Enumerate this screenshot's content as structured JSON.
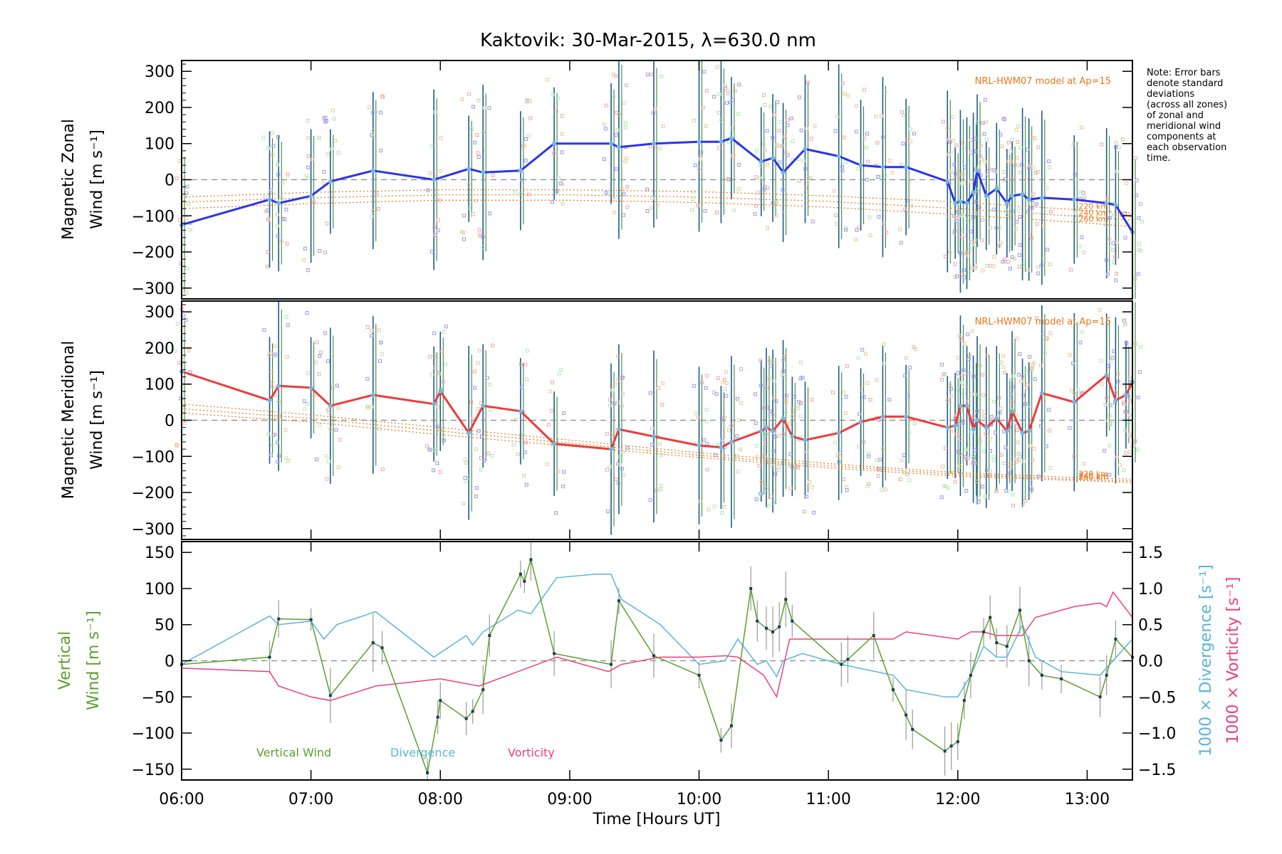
{
  "title": "Kaktovik: 30-Mar-2015, λ=630.0 nm",
  "note": [
    "Note: Error bars",
    "denote standard",
    "deviations",
    "(across all zones)",
    "of zonal and",
    "meridional wind",
    "components at",
    "each observation",
    "time."
  ],
  "colors": {
    "zonal": "#2b35e8",
    "meridional": "#f03a3a",
    "vertical": "#5aa02c",
    "divergence": "#5ab4dc",
    "vorticity": "#ee3f7c",
    "model": "#e8781e",
    "dashed": "#888888"
  },
  "chart_data": [
    {
      "type": "line",
      "panel": "zonal",
      "ylabel_lines": [
        "Magnetic Zonal",
        "Wind [m s⁻¹]"
      ],
      "ylim": [
        -330,
        330
      ],
      "yticks": [
        -300,
        -200,
        -100,
        0,
        100,
        200,
        300
      ],
      "xlim": [
        6.0,
        13.35
      ],
      "model_label": "NRL-HWM07 model at Ap=15",
      "model_altitudes": [
        "220 km",
        "240 km",
        "260 km"
      ],
      "model_curves": [
        {
          "name": "220 km",
          "x": [
            6.0,
            7.0,
            8.0,
            9.0,
            10.0,
            11.0,
            12.0,
            13.0,
            13.35
          ],
          "y": [
            -48,
            -35,
            -28,
            -28,
            -33,
            -45,
            -62,
            -85,
            -92
          ]
        },
        {
          "name": "240 km",
          "x": [
            6.0,
            7.0,
            8.0,
            9.0,
            10.0,
            11.0,
            12.0,
            13.0,
            13.35
          ],
          "y": [
            -62,
            -50,
            -42,
            -42,
            -48,
            -60,
            -80,
            -103,
            -112
          ]
        },
        {
          "name": "260 km",
          "x": [
            6.0,
            7.0,
            8.0,
            9.0,
            10.0,
            11.0,
            12.0,
            13.0,
            13.35
          ],
          "y": [
            -80,
            -66,
            -57,
            -57,
            -63,
            -76,
            -97,
            -120,
            -130
          ]
        }
      ],
      "series": [
        {
          "name": "Zonal wind",
          "x": [
            6.0,
            6.68,
            6.75,
            7.0,
            7.15,
            7.48,
            7.95,
            8.22,
            8.33,
            8.62,
            8.88,
            9.32,
            9.38,
            9.65,
            10.0,
            10.17,
            10.25,
            10.48,
            10.57,
            10.65,
            10.82,
            11.08,
            11.25,
            11.42,
            11.6,
            11.92,
            11.98,
            12.02,
            12.07,
            12.12,
            12.15,
            12.22,
            12.3,
            12.38,
            12.42,
            12.5,
            12.55,
            12.65,
            12.9,
            13.15,
            13.22,
            13.35
          ],
          "y": [
            -125,
            -55,
            -65,
            -45,
            -5,
            25,
            0,
            30,
            20,
            25,
            100,
            100,
            90,
            100,
            105,
            105,
            115,
            50,
            60,
            20,
            85,
            65,
            40,
            35,
            35,
            -5,
            -65,
            -60,
            -65,
            -35,
            25,
            -45,
            -25,
            -65,
            -45,
            -40,
            -55,
            -50,
            -55,
            -65,
            -70,
            -145
          ]
        }
      ]
    },
    {
      "type": "line",
      "panel": "meridional",
      "ylabel_lines": [
        "Magnetic Meridional",
        "Wind [m s⁻¹]"
      ],
      "ylim": [
        -330,
        330
      ],
      "yticks": [
        -300,
        -200,
        -100,
        0,
        100,
        200,
        300
      ],
      "xlim": [
        6.0,
        13.35
      ],
      "model_label": "NRL-HWM07 model at Ap=15",
      "model_altitudes": [
        "220 km",
        "240 km",
        "260 km"
      ],
      "model_curves": [
        {
          "name": "220 km",
          "x": [
            6.0,
            7.0,
            8.0,
            9.0,
            10.0,
            11.0,
            12.0,
            13.0,
            13.35
          ],
          "y": [
            45,
            15,
            -20,
            -55,
            -90,
            -120,
            -145,
            -160,
            -163
          ]
        },
        {
          "name": "240 km",
          "x": [
            6.0,
            7.0,
            8.0,
            9.0,
            10.0,
            11.0,
            12.0,
            13.0,
            13.35
          ],
          "y": [
            32,
            5,
            -30,
            -63,
            -97,
            -126,
            -150,
            -165,
            -168
          ]
        },
        {
          "name": "260 km",
          "x": [
            6.0,
            7.0,
            8.0,
            9.0,
            10.0,
            11.0,
            12.0,
            13.0,
            13.35
          ],
          "y": [
            20,
            -5,
            -40,
            -72,
            -103,
            -132,
            -155,
            -168,
            -172
          ]
        }
      ],
      "series": [
        {
          "name": "Meridional wind",
          "x": [
            6.0,
            6.68,
            6.75,
            7.0,
            7.15,
            7.48,
            7.95,
            8.0,
            8.22,
            8.33,
            8.62,
            8.88,
            9.32,
            9.38,
            9.65,
            10.0,
            10.17,
            10.25,
            10.48,
            10.52,
            10.57,
            10.65,
            10.72,
            10.82,
            11.08,
            11.25,
            11.42,
            11.6,
            11.92,
            11.98,
            12.02,
            12.07,
            12.12,
            12.15,
            12.22,
            12.3,
            12.38,
            12.42,
            12.5,
            12.55,
            12.65,
            12.9,
            13.15,
            13.22,
            13.3,
            13.35
          ],
          "y": [
            135,
            55,
            95,
            90,
            40,
            70,
            45,
            80,
            -35,
            40,
            25,
            -65,
            -80,
            -25,
            -45,
            -70,
            -75,
            -60,
            -30,
            -20,
            -30,
            5,
            -45,
            -55,
            -35,
            -5,
            10,
            10,
            -20,
            -15,
            40,
            40,
            -25,
            0,
            -20,
            5,
            -30,
            25,
            -35,
            -30,
            75,
            50,
            125,
            55,
            70,
            105
          ]
        }
      ]
    },
    {
      "type": "line",
      "panel": "vertical",
      "ylabel_lines": [
        "Vertical",
        "Wind [m s⁻¹]"
      ],
      "ylim": [
        -165,
        165
      ],
      "yticks": [
        -150,
        -100,
        -50,
        0,
        50,
        100,
        150
      ],
      "right_axis": {
        "ylim": [
          -1.5,
          1.5
        ],
        "yticks": [
          -1.5,
          -1.0,
          -0.5,
          0.0,
          0.5,
          1.0,
          1.5
        ],
        "tick_labels": [
          "−1.5",
          "−1.0",
          "−0.5",
          "0.0",
          "0.5",
          "1.0",
          "1.5"
        ],
        "label_divergence": "1000 × Divergence [s⁻¹]",
        "label_vorticity": "1000 × Vorticity [s⁻¹]"
      },
      "xlim": [
        6.0,
        13.35
      ],
      "xticks": [
        6,
        7,
        8,
        9,
        10,
        11,
        12,
        13
      ],
      "xtick_labels": [
        "06:00",
        "07:00",
        "08:00",
        "09:00",
        "10:00",
        "11:00",
        "12:00",
        "13:00"
      ],
      "xlabel": "Time [Hours UT]",
      "legend": [
        "Vertical Wind",
        "Divergence",
        "Vorticity"
      ],
      "series": [
        {
          "name": "Vertical Wind",
          "axis": "left",
          "x": [
            6.0,
            6.68,
            6.75,
            7.0,
            7.15,
            7.48,
            7.55,
            7.9,
            7.98,
            8.0,
            8.2,
            8.25,
            8.33,
            8.38,
            8.62,
            8.65,
            8.7,
            8.88,
            9.32,
            9.38,
            9.65,
            10.0,
            10.17,
            10.25,
            10.4,
            10.45,
            10.52,
            10.57,
            10.62,
            10.67,
            10.72,
            11.1,
            11.15,
            11.35,
            11.5,
            11.6,
            11.65,
            11.9,
            11.95,
            12.0,
            12.05,
            12.1,
            12.2,
            12.25,
            12.3,
            12.38,
            12.48,
            12.55,
            12.65,
            12.8,
            13.1,
            13.15,
            13.22,
            13.35
          ],
          "y": [
            -5,
            5,
            58,
            57,
            -48,
            25,
            18,
            -155,
            -78,
            -55,
            -80,
            -70,
            -40,
            35,
            120,
            110,
            140,
            10,
            -5,
            83,
            7,
            -20,
            -110,
            -90,
            100,
            55,
            45,
            40,
            47,
            85,
            55,
            -5,
            2,
            35,
            -40,
            -75,
            -95,
            -125,
            -118,
            -112,
            -55,
            -20,
            40,
            60,
            25,
            20,
            70,
            0,
            -20,
            -25,
            -50,
            -20,
            30,
            5
          ]
        },
        {
          "name": "Divergence",
          "axis": "right",
          "x": [
            6.0,
            6.68,
            6.75,
            7.0,
            7.1,
            7.2,
            7.5,
            7.95,
            8.2,
            8.25,
            8.33,
            8.6,
            8.7,
            8.9,
            9.2,
            9.32,
            9.4,
            9.7,
            10.0,
            10.2,
            10.3,
            10.45,
            10.52,
            10.6,
            10.65,
            10.8,
            11.1,
            11.5,
            11.6,
            11.9,
            12.0,
            12.1,
            12.2,
            12.3,
            12.38,
            12.5,
            12.6,
            12.8,
            13.1,
            13.35
          ],
          "y": [
            -0.05,
            0.62,
            0.5,
            0.55,
            0.3,
            0.5,
            0.68,
            0.05,
            0.35,
            0.22,
            0.4,
            0.7,
            0.65,
            1.15,
            1.2,
            1.2,
            0.85,
            0.5,
            -0.05,
            0.0,
            0.3,
            -0.05,
            0.0,
            -0.22,
            0.0,
            0.1,
            -0.05,
            -0.2,
            -0.4,
            -0.5,
            -0.5,
            -0.2,
            0.2,
            0.05,
            0.05,
            0.5,
            0.05,
            -0.15,
            -0.2,
            0.3
          ]
        },
        {
          "name": "Vorticity",
          "axis": "right",
          "x": [
            6.0,
            6.68,
            6.75,
            7.0,
            7.15,
            7.5,
            8.0,
            8.3,
            8.9,
            9.3,
            9.4,
            9.7,
            10.0,
            10.2,
            10.3,
            10.5,
            10.6,
            10.7,
            10.8,
            11.1,
            11.5,
            11.6,
            12.0,
            12.1,
            12.2,
            12.3,
            12.38,
            12.5,
            12.6,
            12.9,
            13.1,
            13.15,
            13.2,
            13.35
          ],
          "y": [
            -0.1,
            -0.15,
            -0.35,
            -0.5,
            -0.55,
            -0.35,
            -0.25,
            -0.35,
            0.05,
            -0.15,
            -0.05,
            0.05,
            0.05,
            0.07,
            0.05,
            -0.2,
            -0.5,
            0.3,
            0.3,
            0.3,
            0.3,
            0.4,
            0.3,
            0.4,
            0.4,
            0.35,
            0.35,
            0.35,
            0.6,
            0.75,
            0.8,
            0.75,
            0.95,
            0.6
          ]
        }
      ]
    }
  ]
}
